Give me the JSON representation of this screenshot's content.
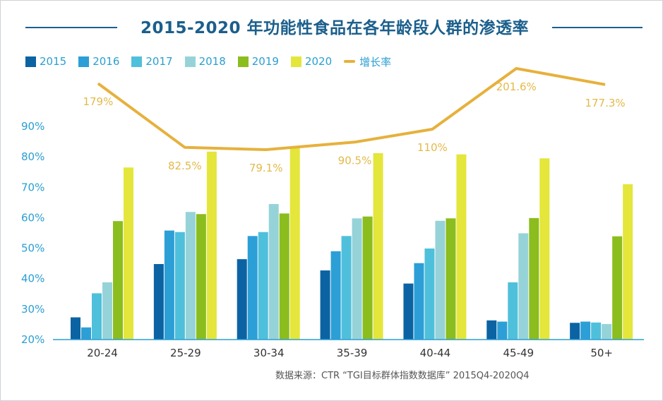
{
  "title": "2015-2020 年功能性食品在各年龄段人群的渗透率",
  "source": "数据来源：CTR “TGI目标群体指数数据库” 2015Q4-2020Q4",
  "legend": [
    {
      "label": "2015",
      "color": "#0b63a3"
    },
    {
      "label": "2016",
      "color": "#2c9fd6"
    },
    {
      "label": "2017",
      "color": "#4fc0db"
    },
    {
      "label": "2018",
      "color": "#96d3d9"
    },
    {
      "label": "2019",
      "color": "#8bbd1e"
    },
    {
      "label": "2020",
      "color": "#e4e63b"
    },
    {
      "label": "增长率",
      "color": "#e6b13c",
      "kind": "line"
    }
  ],
  "chart_data": {
    "type": "bar",
    "categories": [
      "20-24",
      "25-29",
      "30-34",
      "35-39",
      "40-44",
      "45-49",
      "50+"
    ],
    "yticks": [
      "20%",
      "30%",
      "40%",
      "50%",
      "60%",
      "70%",
      "80%",
      "90%"
    ],
    "ylim": [
      20,
      90
    ],
    "grid": false,
    "legend_position": "top-left",
    "series": [
      {
        "name": "2015",
        "values": [
          27.3,
          44.8,
          46.4,
          42.7,
          38.4,
          26.3,
          25.5
        ]
      },
      {
        "name": "2016",
        "values": [
          24.0,
          55.8,
          54.0,
          49.0,
          45.1,
          25.9,
          25.9
        ]
      },
      {
        "name": "2017",
        "values": [
          35.2,
          55.3,
          55.3,
          54.0,
          49.9,
          38.8,
          25.6
        ]
      },
      {
        "name": "2018",
        "values": [
          38.8,
          61.9,
          64.5,
          59.8,
          59.0,
          54.9,
          25.1
        ]
      },
      {
        "name": "2019",
        "values": [
          58.9,
          61.2,
          61.4,
          60.4,
          59.8,
          59.9,
          53.9
        ]
      },
      {
        "name": "2020",
        "values": [
          76.5,
          81.7,
          82.9,
          81.2,
          80.8,
          79.5,
          71.0
        ]
      }
    ],
    "growth_rate": {
      "name": "增长率",
      "values": [
        179,
        82.5,
        79.1,
        90.5,
        110,
        201.6,
        177.3
      ],
      "labels": [
        "179%",
        "82.5%",
        "79.1%",
        "90.5%",
        "110%",
        "201.6%",
        "177.3%"
      ]
    }
  }
}
